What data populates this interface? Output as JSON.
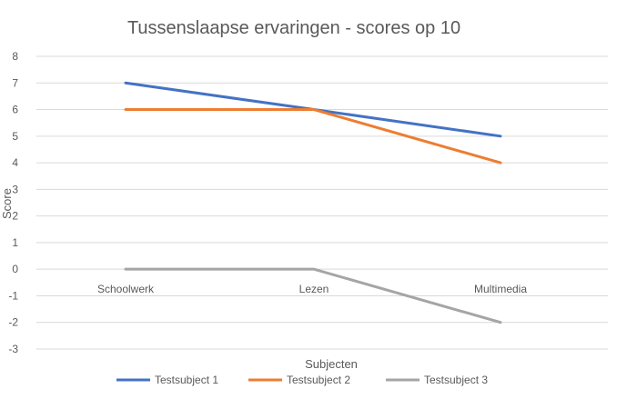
{
  "chart_data": {
    "type": "line",
    "title": "Tussenslaapse ervaringen - scores op 10",
    "xlabel": "Subjecten",
    "ylabel": "Score",
    "categories": [
      "Schoolwerk",
      "Lezen",
      "Multimedia"
    ],
    "ylim": [
      -3,
      8
    ],
    "yticks": [
      8,
      7,
      6,
      5,
      4,
      3,
      2,
      1,
      0,
      -1,
      -2,
      -3
    ],
    "grid": true,
    "legend_position": "bottom",
    "series": [
      {
        "name": "Testsubject 1",
        "values": [
          7,
          6,
          5
        ],
        "color": "#4472c4"
      },
      {
        "name": "Testsubject 2",
        "values": [
          6,
          6,
          4
        ],
        "color": "#ed7d31"
      },
      {
        "name": "Testsubject 3",
        "values": [
          0,
          0,
          -2
        ],
        "color": "#a5a5a5"
      }
    ]
  }
}
